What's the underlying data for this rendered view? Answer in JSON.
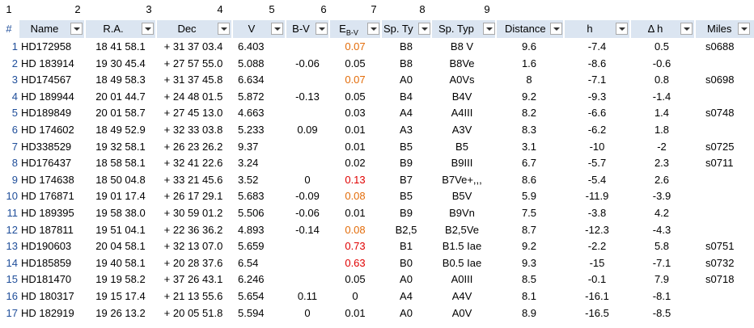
{
  "column_numbers": [
    "1",
    "2",
    "3",
    "4",
    "5",
    "6",
    "7",
    "8",
    "9"
  ],
  "header": {
    "hash": "#",
    "name": "Name",
    "ra": "R.A.",
    "dec": "Dec",
    "v": "V",
    "bv": "B-V",
    "ebv_main": "E",
    "ebv_sub": "B-V",
    "sptype_short": "Sp. Ty",
    "sptype": "Sp. Typ",
    "distance": "Distance",
    "h": "h",
    "dh": "Δ h",
    "miles": "Miles"
  },
  "colors": {
    "header_fill": "#dbe5f1",
    "row_number": "#1f4e9a",
    "orange": "#e36c09",
    "red": "#e00000"
  },
  "rows": [
    {
      "n": "1",
      "name": "HD172958",
      "ra": "18 41 58.1",
      "dec": "+ 31 37 03.4",
      "v": "6.403",
      "bv": "",
      "ebv": "0.07",
      "ebv_color": "orange",
      "sp1": "B8",
      "sp2": "B8 V",
      "dist": "9.6",
      "h": "-7.4",
      "dh": "0.5",
      "miles": "s0688"
    },
    {
      "n": "2",
      "name": "HD 183914",
      "ra": "19 30 45.4",
      "dec": "+ 27 57 55.0",
      "v": "5.088",
      "bv": "-0.06",
      "ebv": "0.05",
      "ebv_color": "",
      "sp1": "B8",
      "sp2": "B8Ve",
      "dist": "1.6",
      "h": "-8.6",
      "dh": "-0.6",
      "miles": ""
    },
    {
      "n": "3",
      "name": "HD174567",
      "ra": "18 49 58.3",
      "dec": "+ 31 37 45.8",
      "v": "6.634",
      "bv": "",
      "ebv": "0.07",
      "ebv_color": "orange",
      "sp1": "A0",
      "sp2": "A0Vs",
      "dist": "8",
      "h": "-7.1",
      "dh": "0.8",
      "miles": "s0698"
    },
    {
      "n": "4",
      "name": "HD 189944",
      "ra": "20 01 44.7",
      "dec": "+ 24 48 01.5",
      "v": "5.872",
      "bv": "-0.13",
      "ebv": "0.05",
      "ebv_color": "",
      "sp1": "B4",
      "sp2": "B4V",
      "dist": "9.2",
      "h": "-9.3",
      "dh": "-1.4",
      "miles": ""
    },
    {
      "n": "5",
      "name": "HD189849",
      "ra": "20 01 58.7",
      "dec": "+ 27 45 13.0",
      "v": "4.663",
      "bv": "",
      "ebv": "0.03",
      "ebv_color": "",
      "sp1": "A4",
      "sp2": "A4III",
      "dist": "8.2",
      "h": "-6.6",
      "dh": "1.4",
      "miles": "s0748"
    },
    {
      "n": "6",
      "name": "HD 174602",
      "ra": "18 49 52.9",
      "dec": "+ 32 33 03.8",
      "v": "5.233",
      "bv": "0.09",
      "ebv": "0.01",
      "ebv_color": "",
      "sp1": "A3",
      "sp2": "A3V",
      "dist": "8.3",
      "h": "-6.2",
      "dh": "1.8",
      "miles": ""
    },
    {
      "n": "7",
      "name": "HD338529",
      "ra": "19 32 58.1",
      "dec": "+ 26 23 26.2",
      "v": "9.37",
      "bv": "",
      "ebv": "0.01",
      "ebv_color": "",
      "sp1": "B5",
      "sp2": "B5",
      "dist": "3.1",
      "h": "-10",
      "dh": "-2",
      "miles": "s0725"
    },
    {
      "n": "8",
      "name": "HD176437",
      "ra": "18 58 58.1",
      "dec": "+ 32 41 22.6",
      "v": "3.24",
      "bv": "",
      "ebv": "0.02",
      "ebv_color": "",
      "sp1": "B9",
      "sp2": "B9III",
      "dist": "6.7",
      "h": "-5.7",
      "dh": "2.3",
      "miles": "s0711"
    },
    {
      "n": "9",
      "name": "HD 174638",
      "ra": "18 50 04.8",
      "dec": "+ 33 21 45.6",
      "v": "3.52",
      "bv": "0",
      "ebv": "0.13",
      "ebv_color": "red",
      "sp1": "B7",
      "sp2": "B7Ve+,,,",
      "dist": "8.6",
      "h": "-5.4",
      "dh": "2.6",
      "miles": ""
    },
    {
      "n": "10",
      "name": "HD 176871",
      "ra": "19 01 17.4",
      "dec": "+ 26 17 29.1",
      "v": "5.683",
      "bv": "-0.09",
      "ebv": "0.08",
      "ebv_color": "orange",
      "sp1": "B5",
      "sp2": "B5V",
      "dist": "5.9",
      "h": "-11.9",
      "dh": "-3.9",
      "miles": ""
    },
    {
      "n": "11",
      "name": "HD 189395",
      "ra": "19 58 38.0",
      "dec": "+ 30 59 01.2",
      "v": "5.506",
      "bv": "-0.06",
      "ebv": "0.01",
      "ebv_color": "",
      "sp1": "B9",
      "sp2": "B9Vn",
      "dist": "7.5",
      "h": "-3.8",
      "dh": "4.2",
      "miles": ""
    },
    {
      "n": "12",
      "name": "HD 187811",
      "ra": "19 51 04.1",
      "dec": "+ 22 36 36.2",
      "v": "4.893",
      "bv": "-0.14",
      "ebv": "0.08",
      "ebv_color": "orange",
      "sp1": "B2,5",
      "sp2": "B2,5Ve",
      "dist": "8.7",
      "h": "-12.3",
      "dh": "-4.3",
      "miles": ""
    },
    {
      "n": "13",
      "name": "HD190603",
      "ra": "20 04 58.1",
      "dec": "+ 32 13 07.0",
      "v": "5.659",
      "bv": "",
      "ebv": "0.73",
      "ebv_color": "red",
      "sp1": "B1",
      "sp2": "B1.5 Iae",
      "dist": "9.2",
      "h": "-2.2",
      "dh": "5.8",
      "miles": "s0751"
    },
    {
      "n": "14",
      "name": "HD185859",
      "ra": "19 40 58.1",
      "dec": "+ 20 28 37.6",
      "v": "6.54",
      "bv": "",
      "ebv": "0.63",
      "ebv_color": "red",
      "sp1": "B0",
      "sp2": "B0.5 Iae",
      "dist": "9.3",
      "h": "-15",
      "dh": "-7.1",
      "miles": "s0732"
    },
    {
      "n": "15",
      "name": "HD181470",
      "ra": "19 19 58.2",
      "dec": "+ 37 26 43.1",
      "v": "6.246",
      "bv": "",
      "ebv": "0.05",
      "ebv_color": "",
      "sp1": "A0",
      "sp2": "A0III",
      "dist": "8.5",
      "h": "-0.1",
      "dh": "7.9",
      "miles": "s0718"
    },
    {
      "n": "16",
      "name": "HD 180317",
      "ra": "19 15 17.4",
      "dec": "+ 21 13 55.6",
      "v": "5.654",
      "bv": "0.11",
      "ebv": "0",
      "ebv_color": "",
      "sp1": "A4",
      "sp2": "A4V",
      "dist": "8.1",
      "h": "-16.1",
      "dh": "-8.1",
      "miles": ""
    },
    {
      "n": "17",
      "name": "HD 182919",
      "ra": "19 26 13.2",
      "dec": "+ 20 05 51.8",
      "v": "5.594",
      "bv": "0",
      "ebv": "0.01",
      "ebv_color": "",
      "sp1": "A0",
      "sp2": "A0V",
      "dist": "8.9",
      "h": "-16.5",
      "dh": "-8.5",
      "miles": ""
    }
  ]
}
